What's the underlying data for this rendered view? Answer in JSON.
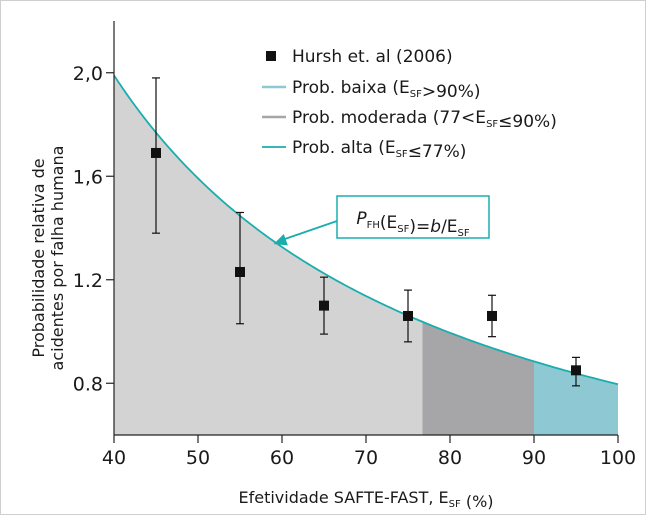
{
  "chart_data": {
    "type": "scatter",
    "xlabel": {
      "main": "Efetividade SAFTE-FAST, E",
      "sub": "SF",
      "unit": " (%)"
    },
    "ylabel": [
      "Probabilidade relativa de",
      "acidentes por falha humana"
    ],
    "xlim": [
      40,
      100
    ],
    "ylim": [
      0.6,
      2.2
    ],
    "x_ticks": [
      40,
      50,
      60,
      70,
      80,
      90,
      100
    ],
    "y_ticks": [
      {
        "value": 0.8,
        "label": "0.8"
      },
      {
        "value": 1.2,
        "label": "1.2"
      },
      {
        "value": 1.6,
        "label": "1,6"
      },
      {
        "value": 2.0,
        "label": "2,0"
      }
    ],
    "grid": false,
    "legend_position": "top-right",
    "points": {
      "name": "Hursh et. al (2006)",
      "color": "#111111",
      "x": [
        45,
        55,
        65,
        75,
        85,
        95
      ],
      "y": [
        1.69,
        1.23,
        1.1,
        1.06,
        1.06,
        0.85
      ],
      "err_low": [
        1.38,
        1.03,
        0.99,
        0.96,
        0.98,
        0.79
      ],
      "err_high": [
        1.98,
        1.46,
        1.21,
        1.16,
        1.14,
        0.9
      ]
    },
    "curve": {
      "formula": "b/E_SF",
      "b": 79.6,
      "x_start": 40,
      "x_end": 100,
      "color": "#1aadad"
    },
    "regions": [
      {
        "label": {
          "main": "Prob. baixa (E",
          "sub": "SF",
          "rest": ">90%)"
        },
        "x_from": 90,
        "x_to": 100,
        "color": "#8ec9d3"
      },
      {
        "label": {
          "main": "Prob. moderada (77<E",
          "sub": "SF",
          "rest": "≤90%)"
        },
        "x_from": 76.7,
        "x_to": 90,
        "color": "#a6a6a8"
      },
      {
        "label": {
          "main": "Prob. alta (E",
          "sub": "SF",
          "rest": "≤77%)"
        },
        "x_from": 40,
        "x_to": 76.7,
        "color": "#d3d3d4"
      }
    ],
    "annotation": {
      "parts": [
        {
          "text": "P",
          "italic": true
        },
        {
          "text": "FH",
          "sub": true
        },
        {
          "text": "(E"
        },
        {
          "text": "SF",
          "sub": true
        },
        {
          "text": ")="
        },
        {
          "text": "b",
          "italic": true
        },
        {
          "text": "/E"
        },
        {
          "text": "SF",
          "sub": true
        }
      ],
      "color": "#1aadad",
      "arrow_target_x": 59
    }
  }
}
